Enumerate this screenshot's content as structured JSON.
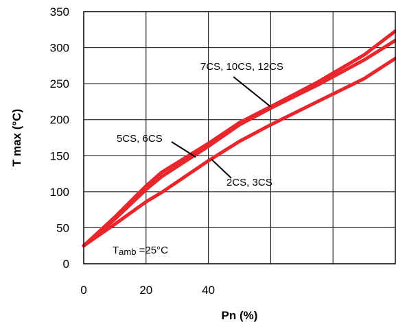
{
  "chart_data": {
    "type": "line",
    "xlabel": "Pn (%)",
    "ylabel": "T max  (°C)",
    "xlim": [
      0,
      100
    ],
    "ylim": [
      0,
      350
    ],
    "x_ticks": [
      0,
      20,
      40
    ],
    "y_ticks": [
      0,
      50,
      100,
      150,
      200,
      250,
      300,
      350
    ],
    "grid": true,
    "series": [
      {
        "x": [
          0,
          10,
          20,
          25,
          40,
          50,
          60,
          75,
          90,
          100
        ],
        "y": [
          25,
          65,
          108,
          127,
          167,
          196,
          218,
          252,
          290,
          323
        ]
      },
      {
        "x": [
          0,
          10,
          20,
          25,
          40,
          50,
          60,
          75,
          90,
          100
        ],
        "y": [
          25,
          62,
          103,
          121,
          163,
          193,
          216,
          248,
          283,
          310
        ]
      },
      {
        "x": [
          0,
          10,
          20,
          25,
          40,
          50,
          60,
          75,
          90,
          100
        ],
        "y": [
          25,
          55,
          86,
          99,
          143,
          170,
          193,
          225,
          257,
          285
        ]
      }
    ],
    "annotations": [
      {
        "text": "7CS, 10CS, 12CS",
        "point_x": 60,
        "point_y": 218
      },
      {
        "text": "5CS, 6CS",
        "point_x": 36,
        "point_y": 148
      },
      {
        "text": "2CS, 3CS",
        "point_x": 41,
        "point_y": 145
      }
    ],
    "ambient_label": {
      "main": "T",
      "sub": "amb",
      "rest": " =25°C"
    },
    "line_color": "#e8262c"
  }
}
